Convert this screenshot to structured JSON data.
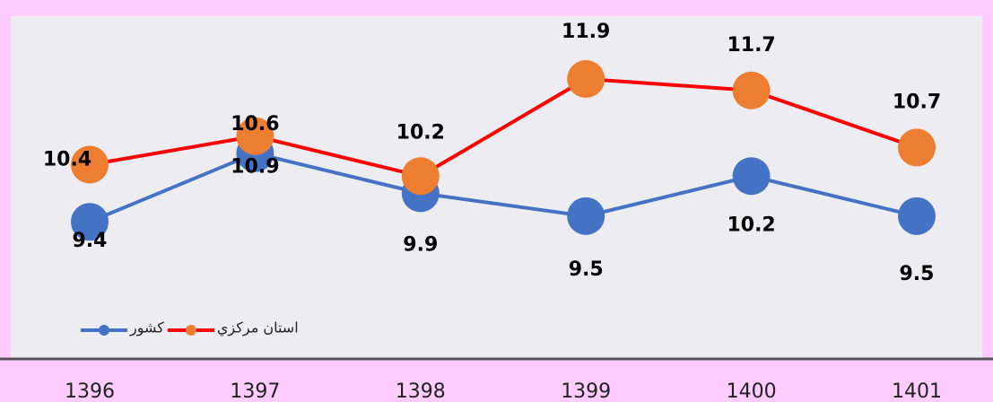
{
  "chart_data": {
    "type": "line",
    "categories": [
      "1396",
      "1397",
      "1398",
      "1399",
      "1400",
      "1401"
    ],
    "series": [
      {
        "name": "کشور",
        "color": "#4472C4",
        "marker_color": "#4472C4",
        "values": [
          9.4,
          10.6,
          9.9,
          9.5,
          10.2,
          9.5
        ]
      },
      {
        "name": "استان مرکزي",
        "color": "#FF0000",
        "marker_color": "#ED7D31",
        "values": [
          10.4,
          10.9,
          10.2,
          11.9,
          11.7,
          10.7
        ]
      }
    ],
    "ylim": [
      7,
      13
    ],
    "legend": "bottom-left"
  }
}
